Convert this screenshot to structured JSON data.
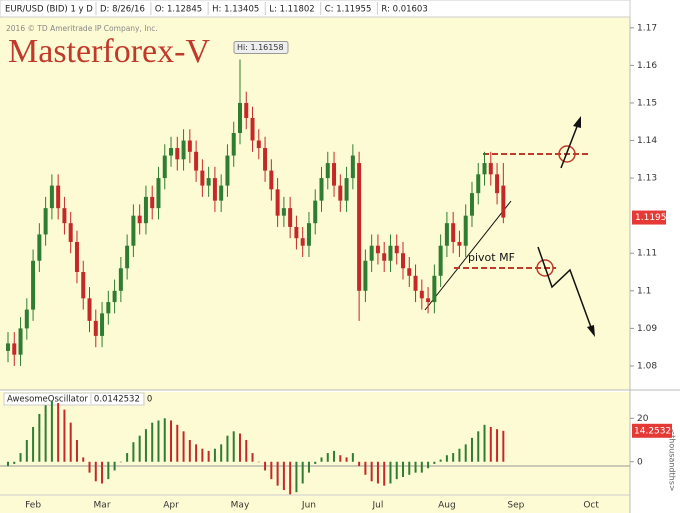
{
  "chart_data": {
    "type": "candlestick",
    "symbol": "EUR/USD (BID) 1 y D",
    "header_fields": [
      "D: 8/26/16",
      "O: 1.12845",
      "H: 1.13405",
      "L: 1.11802",
      "C: 1.11955",
      "R: 0.01603"
    ],
    "copyright": "2016 © TD Ameritrade IP Company, Inc.",
    "watermark": "Masterforex-V",
    "hi_label": "Hi: 1.16158",
    "annotation": "pivot MF",
    "categories": [
      null,
      null,
      null,
      null,
      "Feb",
      null,
      null,
      null,
      null,
      null,
      null,
      null,
      null,
      null,
      null,
      "Mar",
      null,
      null,
      null,
      null,
      null,
      null,
      null,
      null,
      null,
      null,
      "Apr",
      null,
      null,
      null,
      null,
      null,
      null,
      null,
      null,
      null,
      null,
      "May",
      null,
      null,
      null,
      null,
      null,
      null,
      null,
      null,
      null,
      null,
      "Jun",
      null,
      null,
      null,
      null,
      null,
      null,
      null,
      null,
      null,
      null,
      "Jul",
      null,
      null,
      null,
      null,
      null,
      null,
      null,
      null,
      null,
      null,
      "Aug",
      null,
      null,
      null,
      null,
      null,
      null,
      null,
      null,
      null,
      null,
      "Sep",
      null,
      null,
      null,
      null,
      null,
      null,
      null,
      null,
      null,
      null,
      null,
      "Oct"
    ],
    "open": [
      1.084,
      1.086,
      1.083,
      1.09,
      1.095,
      1.108,
      1.115,
      1.122,
      1.128,
      1.122,
      1.118,
      1.113,
      1.105,
      1.098,
      1.092,
      1.088,
      1.094,
      1.097,
      1.1,
      1.106,
      1.112,
      1.12,
      1.118,
      1.125,
      1.122,
      1.13,
      1.136,
      1.138,
      1.135,
      1.14,
      1.137,
      1.132,
      1.128,
      1.13,
      1.124,
      1.128,
      1.136,
      1.142,
      1.15,
      1.146,
      1.14,
      1.138,
      1.132,
      1.127,
      1.12,
      1.122,
      1.117,
      1.114,
      1.112,
      1.118,
      1.124,
      1.13,
      1.134,
      1.128,
      1.124,
      1.13,
      1.134,
      1.1,
      1.108,
      1.112,
      1.11,
      1.108,
      1.112,
      1.11,
      1.106,
      1.104,
      1.1,
      1.098,
      1.097,
      1.104,
      1.112,
      1.118,
      1.113,
      1.112,
      1.12,
      1.126,
      1.131,
      1.134,
      1.131,
      1.128,
      null,
      null,
      null,
      null,
      null,
      null,
      null,
      null,
      null,
      null,
      null,
      null,
      null,
      null
    ],
    "high": [
      1.089,
      1.089,
      1.093,
      1.098,
      1.111,
      1.118,
      1.125,
      1.131,
      1.131,
      1.125,
      1.121,
      1.116,
      1.108,
      1.101,
      1.095,
      1.097,
      1.1,
      1.103,
      1.109,
      1.115,
      1.123,
      1.123,
      1.128,
      1.128,
      1.133,
      1.139,
      1.141,
      1.141,
      1.143,
      1.143,
      1.14,
      1.135,
      1.133,
      1.133,
      1.131,
      1.139,
      1.145,
      1.16158,
      1.153,
      1.149,
      1.143,
      1.141,
      1.135,
      1.13,
      1.125,
      1.125,
      1.12,
      1.117,
      1.121,
      1.127,
      1.133,
      1.137,
      1.137,
      1.131,
      1.133,
      1.139,
      1.137,
      1.111,
      1.115,
      1.115,
      1.113,
      1.115,
      1.115,
      1.113,
      1.109,
      1.107,
      1.103,
      1.101,
      1.107,
      1.115,
      1.121,
      1.121,
      1.116,
      1.123,
      1.129,
      1.134,
      1.137,
      1.137,
      1.134,
      1.134,
      null,
      null,
      null,
      null,
      null,
      null,
      null,
      null,
      null,
      null,
      null,
      null,
      null,
      null
    ],
    "low": [
      1.081,
      1.08,
      1.08,
      1.087,
      1.092,
      1.105,
      1.112,
      1.119,
      1.119,
      1.115,
      1.11,
      1.102,
      1.095,
      1.089,
      1.085,
      1.085,
      1.091,
      1.094,
      1.097,
      1.103,
      1.109,
      1.115,
      1.115,
      1.119,
      1.119,
      1.127,
      1.133,
      1.132,
      1.132,
      1.134,
      1.129,
      1.125,
      1.125,
      1.121,
      1.121,
      1.125,
      1.133,
      1.139,
      1.143,
      1.137,
      1.135,
      1.129,
      1.124,
      1.117,
      1.117,
      1.114,
      1.111,
      1.109,
      1.109,
      1.115,
      1.121,
      1.127,
      1.125,
      1.121,
      1.121,
      1.127,
      1.092,
      1.097,
      1.105,
      1.107,
      1.105,
      1.105,
      1.107,
      1.103,
      1.101,
      1.097,
      1.095,
      1.094,
      1.094,
      1.101,
      1.109,
      1.11,
      1.109,
      1.109,
      1.117,
      1.123,
      1.128,
      1.128,
      1.123,
      1.118,
      null,
      null,
      null,
      null,
      null,
      null,
      null,
      null,
      null,
      null,
      null,
      null,
      null,
      null
    ],
    "close": [
      1.086,
      1.083,
      1.09,
      1.095,
      1.108,
      1.115,
      1.122,
      1.128,
      1.122,
      1.118,
      1.113,
      1.105,
      1.098,
      1.092,
      1.088,
      1.094,
      1.097,
      1.1,
      1.106,
      1.112,
      1.12,
      1.118,
      1.125,
      1.122,
      1.13,
      1.136,
      1.138,
      1.135,
      1.14,
      1.137,
      1.132,
      1.128,
      1.13,
      1.124,
      1.128,
      1.136,
      1.142,
      1.15,
      1.146,
      1.14,
      1.138,
      1.132,
      1.127,
      1.12,
      1.122,
      1.117,
      1.114,
      1.112,
      1.118,
      1.124,
      1.13,
      1.134,
      1.128,
      1.124,
      1.13,
      1.136,
      1.1,
      1.108,
      1.112,
      1.11,
      1.108,
      1.112,
      1.11,
      1.106,
      1.104,
      1.1,
      1.098,
      1.097,
      1.104,
      1.112,
      1.118,
      1.113,
      1.112,
      1.12,
      1.126,
      1.131,
      1.134,
      1.131,
      1.126,
      1.1195,
      null,
      null,
      null,
      null,
      null,
      null,
      null,
      null,
      null,
      null,
      null,
      null,
      null,
      null
    ],
    "up_color": "#2e7d32",
    "down_color": "#c62828",
    "ylim": [
      1.0736,
      1.1774
    ],
    "yticks": [
      1.08,
      1.09,
      1.1,
      1.11,
      1.13,
      1.14,
      1.15,
      1.16,
      1.17
    ],
    "oscillator": {
      "name": "AwesomeOscillator",
      "header_values": [
        "0.0142532",
        "0"
      ],
      "axis_label": "<thousandths>",
      "values": [
        -2,
        -1,
        4,
        10,
        16,
        22,
        26,
        28,
        27,
        24,
        18,
        10,
        2,
        -5,
        -9,
        -10,
        -8,
        -4,
        0,
        4,
        9,
        12,
        15,
        18,
        19,
        20,
        19,
        17,
        14,
        10,
        8,
        6,
        5,
        6,
        8,
        12,
        14,
        13,
        10,
        4,
        0,
        -4,
        -8,
        -11,
        -13,
        -15,
        -14,
        -10,
        -5,
        -1,
        2,
        4,
        5,
        3,
        2,
        4,
        -2,
        -6,
        -9,
        -10,
        -11,
        -10,
        -8,
        -7,
        -6,
        -5,
        -5,
        -3,
        -1,
        1,
        3,
        4,
        6,
        8,
        11,
        14,
        17,
        16,
        15,
        14.2532,
        null,
        null,
        null,
        null,
        null,
        null,
        null,
        null,
        null,
        null,
        null,
        null,
        null,
        null
      ],
      "ylim": [
        -15.3,
        32.1
      ],
      "yticks": [
        0,
        20
      ]
    }
  }
}
